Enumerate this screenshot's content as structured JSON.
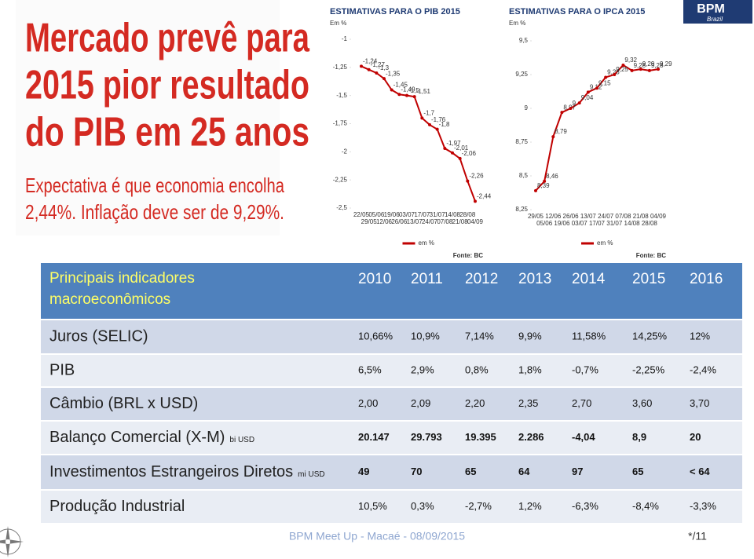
{
  "headline": {
    "lines": [
      "Mercado prevê para",
      "2015 pior resultado",
      "do PIB em 25 anos"
    ],
    "subtitle": [
      "Expectativa é que economia encolha",
      "2,44%. Inflação deve ser de 9,29%."
    ]
  },
  "logo": {
    "name": "BPM",
    "sub": "Brazil"
  },
  "chart_data": [
    {
      "type": "line",
      "title": "ESTIMATIVAS PARA O PIB 2015",
      "ylabel": "Em %",
      "source": "Fonte: BC",
      "categories": [
        "22/05",
        "29/05",
        "05/06",
        "12/06",
        "19/06",
        "26/06",
        "03/07",
        "13/07",
        "17/07",
        "24/07",
        "31/07",
        "07/08",
        "14/08",
        "21/08",
        "28/08",
        "04/09"
      ],
      "series": [
        {
          "name": "em %",
          "color": "#c00000",
          "values": [
            -1.24,
            -1.27,
            -1.3,
            -1.35,
            -1.45,
            -1.49,
            -1.5,
            -1.51,
            -1.7,
            -1.76,
            -1.8,
            -1.97,
            -2.01,
            -2.06,
            -2.26,
            -2.44
          ],
          "value_labels": [
            "-1,24",
            "-1,27",
            "-1,3",
            "-1,35",
            "-1,45",
            "-1,49",
            "-1,5",
            "-1,51",
            "-1,7",
            "-1,76",
            "-1,8",
            "-1,97",
            "-2,01",
            "-2,06",
            "-2,26",
            "-2,44"
          ]
        }
      ],
      "ylim": [
        -2.5,
        -1
      ],
      "yticks": [
        -1,
        {
          "value": -1.25,
          "label": "-1,25"
        },
        {
          "value": -1.5,
          "label": "-1,5"
        },
        {
          "value": -1.75,
          "label": "-1,75"
        },
        -2,
        {
          "value": -2.25,
          "label": "-2,25"
        },
        {
          "value": -2.5,
          "label": "-2,5"
        }
      ]
    },
    {
      "type": "line",
      "title": "ESTIMATIVAS PARA O IPCA 2015",
      "ylabel": "Em %",
      "source": "Fonte: BC",
      "categories": [
        "29/05",
        "05/06",
        "12/06",
        "19/06",
        "26/06",
        "03/07",
        "13/07",
        "17/07",
        "24/07",
        "31/07",
        "07/08",
        "14/08",
        "21/08",
        "28/08",
        "04/09"
      ],
      "series": [
        {
          "name": "em %",
          "color": "#c00000",
          "values": [
            8.39,
            8.46,
            8.79,
            8.97,
            9,
            9.04,
            9.12,
            9.15,
            9.23,
            9.25,
            9.32,
            9.28,
            9.29,
            9.28,
            9.29
          ],
          "value_labels": [
            "8,39",
            "8,46",
            "8,79",
            "8,97",
            "9",
            "9,04",
            "9,12",
            "9,15",
            "9,23",
            "9,25",
            "9,32",
            "9,28",
            "9,29",
            "9,28",
            "9,29"
          ]
        }
      ],
      "ylim": [
        8.25,
        9.5
      ],
      "yticks": [
        {
          "value": 9.5,
          "label": "9,5"
        },
        {
          "value": 9.25,
          "label": "9,25"
        },
        9,
        {
          "value": 8.75,
          "label": "8,75"
        },
        {
          "value": 8.5,
          "label": "8,5"
        },
        {
          "value": 8.25,
          "label": "8,25"
        }
      ]
    }
  ],
  "table": {
    "corner": [
      "Principais indicadores",
      "macroeconômicos"
    ],
    "columns": [
      "2010",
      "2011",
      "2012",
      "2013",
      "2014",
      "2015",
      "2016"
    ],
    "rows": [
      {
        "label": "Juros (SELIC)",
        "values": [
          "10,66%",
          "10,9%",
          "7,14%",
          "9,9%",
          "11,58%",
          "14,25%",
          "12%"
        ]
      },
      {
        "label": "PIB",
        "values": [
          "6,5%",
          "2,9%",
          "0,8%",
          "1,8%",
          "-0,7%",
          "-2,25%",
          "-2,4%"
        ]
      },
      {
        "label": "Câmbio (BRL x USD)",
        "values": [
          "2,00",
          "2,09",
          "2,20",
          "2,35",
          "2,70",
          "3,60",
          "3,70"
        ]
      },
      {
        "label": "Balanço Comercial (X-M)",
        "unit": "bi USD",
        "values": [
          "20.147",
          "29.793",
          "19.395",
          "2.286",
          "-4,04",
          "8,9",
          "20"
        ]
      },
      {
        "label": "Investimentos Estrangeiros Diretos",
        "unit": "mi USD",
        "values": [
          "49",
          "70",
          "65",
          "64",
          "97",
          "65",
          "< 64"
        ]
      },
      {
        "label": "Produção Industrial",
        "values": [
          "10,5%",
          "0,3%",
          "-2,7%",
          "1,2%",
          "-6,3%",
          "-8,4%",
          "-3,3%"
        ]
      }
    ]
  },
  "footer": {
    "text": "BPM Meet Up - Macaé - 08/09/2015",
    "page": "*/11"
  }
}
